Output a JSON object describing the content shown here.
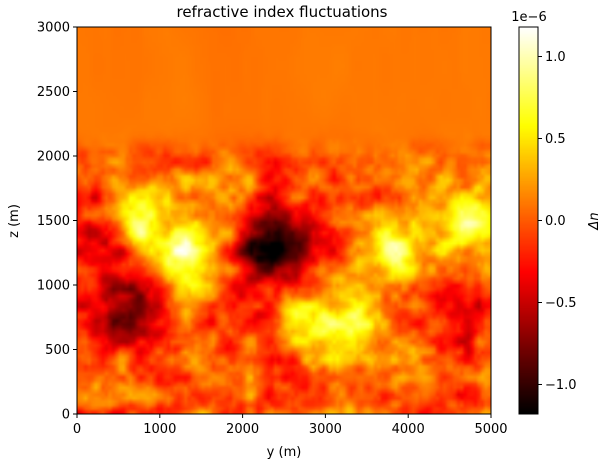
{
  "chart_data": {
    "type": "heatmap",
    "title": "refractive index fluctuations",
    "xlabel": "y (m)",
    "ylabel": "z (m)",
    "colorbar_label": "Δn",
    "colorbar_multiplier": "1e−6",
    "colormap": "hot",
    "xlim": [
      0,
      5000
    ],
    "ylim": [
      0,
      3000
    ],
    "clim": [
      -1.18,
      1.18
    ],
    "xticks": [
      0,
      1000,
      2000,
      3000,
      4000,
      5000
    ],
    "yticks": [
      0,
      500,
      1000,
      1500,
      2000,
      2500,
      3000
    ],
    "cticks": [
      -1.0,
      -0.5,
      0.0,
      0.5,
      1.0
    ],
    "xtick_labels": [
      "0",
      "1000",
      "2000",
      "3000",
      "4000",
      "5000"
    ],
    "ytick_labels": [
      "0",
      "500",
      "1000",
      "1500",
      "2000",
      "2500",
      "3000"
    ],
    "ctick_labels": [
      "−1.0",
      "−0.5",
      "0.0",
      "0.5",
      "1.0"
    ],
    "background_value_upper": 0.1,
    "turbulent_layer_top": 2050,
    "features": [
      {
        "y": 2300,
        "z": 1350,
        "amplitude": -1.1
      },
      {
        "y": 2750,
        "z": 1150,
        "amplitude": -0.5
      },
      {
        "y": 600,
        "z": 800,
        "amplitude": -0.6
      },
      {
        "y": 200,
        "z": 1400,
        "amplitude": -0.55
      },
      {
        "y": 350,
        "z": 1050,
        "amplitude": -0.3
      },
      {
        "y": 2100,
        "z": 900,
        "amplitude": -0.35
      },
      {
        "y": 4700,
        "z": 700,
        "amplitude": -0.3
      },
      {
        "y": 1300,
        "z": 1250,
        "amplitude": 1.0
      },
      {
        "y": 700,
        "z": 1550,
        "amplitude": 0.75
      },
      {
        "y": 2850,
        "z": 750,
        "amplitude": 0.85
      },
      {
        "y": 3800,
        "z": 1300,
        "amplitude": 0.8
      },
      {
        "y": 4700,
        "z": 1500,
        "amplitude": 0.7
      },
      {
        "y": 3400,
        "z": 650,
        "amplitude": 0.35
      },
      {
        "y": 1800,
        "z": 1700,
        "amplitude": 0.3
      }
    ]
  }
}
